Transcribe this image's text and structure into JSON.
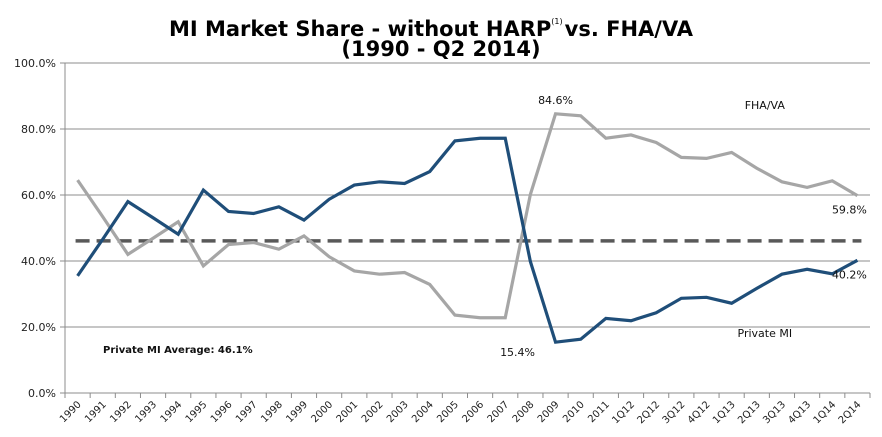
{
  "chart_data": {
    "type": "line",
    "title_line1": "MI Market Share - without HARP",
    "title_footnote": "(1)",
    "title_line1_suffix": "vs. FHA/VA",
    "title_line2": "(1990 - Q2 2014)",
    "xlabel": "",
    "ylabel": "",
    "ylim": [
      0,
      100
    ],
    "y_ticks": [
      0,
      20,
      40,
      60,
      80,
      100
    ],
    "y_tick_labels": [
      "0.0%",
      "20.0%",
      "40.0%",
      "60.0%",
      "80.0%",
      "100.0%"
    ],
    "grid": true,
    "categories": [
      "1990",
      "1991",
      "1992",
      "1993",
      "1994",
      "1995",
      "1996",
      "1997",
      "1998",
      "1999",
      "2000",
      "2001",
      "2002",
      "2003",
      "2004",
      "2005",
      "2006",
      "2007",
      "2008",
      "2009",
      "2010",
      "2011",
      "1Q12",
      "2Q12",
      "3Q12",
      "4Q12",
      "1Q13",
      "2Q13",
      "3Q13",
      "4Q13",
      "1Q14",
      "2Q14"
    ],
    "series": [
      {
        "name": "Private MI",
        "color": "#1F4E79",
        "values": [
          35.5,
          46.6,
          58.0,
          53.1,
          48.1,
          61.5,
          55.0,
          54.4,
          56.4,
          52.4,
          58.7,
          63.0,
          64.0,
          63.5,
          67.1,
          76.4,
          77.2,
          77.2,
          39.8,
          15.4,
          16.3,
          22.6,
          21.9,
          24.3,
          28.7,
          29.0,
          27.2,
          31.7,
          36.0,
          37.5,
          36.1,
          40.2
        ]
      },
      {
        "name": "FHA/VA",
        "color": "#A6A6A6",
        "values": [
          64.5,
          53.4,
          42.0,
          46.9,
          51.9,
          38.5,
          45.0,
          45.6,
          43.6,
          47.6,
          41.3,
          37.0,
          36.0,
          36.5,
          32.9,
          23.6,
          22.8,
          22.8,
          60.2,
          84.6,
          84.0,
          77.2,
          78.2,
          75.9,
          71.4,
          71.1,
          72.9,
          68.1,
          64.0,
          62.3,
          64.3,
          59.8
        ]
      }
    ],
    "average_line": {
      "name": "Private MI Average",
      "value": 46.1,
      "label": "Private MI Average: 46.1%",
      "color": "#595959",
      "style": "dashed"
    },
    "annotations": [
      {
        "text": "84.6%",
        "category": "2009",
        "series": "FHA/VA",
        "position": "above"
      },
      {
        "text": "15.4%",
        "category": "2009",
        "series": "Private MI",
        "position": "below-left"
      },
      {
        "text": "59.8%",
        "category": "2Q14",
        "series": "FHA/VA",
        "position": "below"
      },
      {
        "text": "40.2%",
        "category": "2Q14",
        "series": "Private MI",
        "position": "below"
      },
      {
        "text": "FHA/VA",
        "category": "2Q13",
        "value": 86,
        "type": "series-label"
      },
      {
        "text": "Private MI",
        "category": "2Q13",
        "value": 17,
        "type": "series-label"
      }
    ],
    "legend": "none (inline series labels)"
  }
}
